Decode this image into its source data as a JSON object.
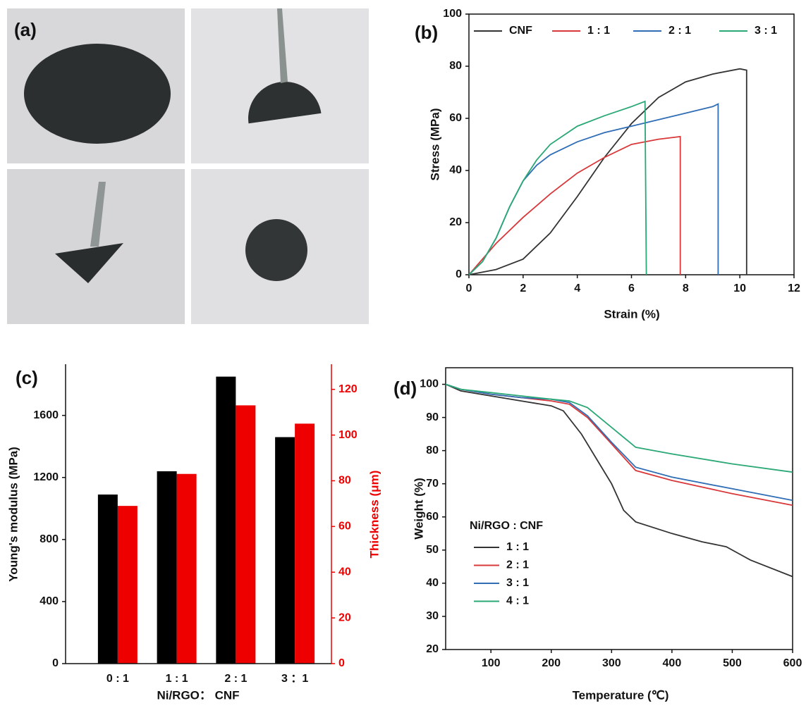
{
  "photos": {
    "label": "(a)"
  },
  "chart_data": [
    {
      "type": "line",
      "panel_label": "(b)",
      "x_label": "Strain (%)",
      "y_label": "Stress (MPa)",
      "xlim": [
        0,
        12
      ],
      "xticks": [
        0,
        2,
        4,
        6,
        8,
        10,
        12
      ],
      "ylim": [
        0,
        100
      ],
      "yticks": [
        0,
        20,
        40,
        60,
        80,
        100
      ],
      "legend": "top",
      "series": [
        {
          "name": "CNF",
          "color": "#333333",
          "x": [
            0,
            1,
            2,
            3,
            4,
            5,
            6,
            7,
            8,
            9,
            10,
            10.25,
            10.25
          ],
          "values": [
            0,
            2,
            6,
            16,
            30,
            45,
            58,
            68,
            74,
            77,
            79,
            78.5,
            0
          ]
        },
        {
          "name": "1 : 1",
          "color": "#d9383a",
          "x": [
            0,
            1,
            2,
            3,
            4,
            5,
            6,
            7,
            7.8,
            7.8
          ],
          "values": [
            0,
            12,
            22,
            31,
            39,
            45,
            50,
            52,
            53,
            0
          ]
        },
        {
          "name": "2 : 1",
          "color": "#2f6db5",
          "x": [
            0,
            0.5,
            1,
            1.5,
            2,
            2.5,
            3,
            4,
            5,
            6,
            7,
            8,
            9,
            9.2,
            9.2
          ],
          "values": [
            0,
            5,
            14,
            26,
            36,
            42,
            46,
            51,
            54.5,
            57,
            59.5,
            62,
            64.5,
            65.5,
            0
          ]
        },
        {
          "name": "3 : 1",
          "color": "#2aa876",
          "x": [
            0,
            0.5,
            1,
            1.5,
            2,
            2.5,
            3,
            4,
            5,
            6,
            6.5,
            6.55
          ],
          "values": [
            0,
            5,
            14,
            26,
            36,
            44,
            50,
            57,
            61,
            64.5,
            66.5,
            0
          ]
        }
      ]
    },
    {
      "type": "bar",
      "panel_label": "(c)",
      "x_label": "Ni/RGO： CNF",
      "y_label": "Young's modulus (MPa)",
      "y2_label": "Thickness (μm)",
      "categories": [
        "0 : 1",
        "1 : 1",
        "2 : 1",
        "3 ：1"
      ],
      "ylim": [
        0,
        1930
      ],
      "yticks": [
        0,
        400,
        800,
        1200,
        1600
      ],
      "y2lim": [
        0,
        131
      ],
      "y2ticks": [
        0,
        20,
        40,
        60,
        80,
        100,
        120
      ],
      "y2color": "#ee0000",
      "series": [
        {
          "color": "#000000",
          "values": [
            1090,
            1240,
            1850,
            1460
          ]
        },
        {
          "color": "#ee0000",
          "axis": "y2",
          "values": [
            69,
            83,
            113,
            105
          ]
        }
      ]
    },
    {
      "type": "line",
      "panel_label": "(d)",
      "x_label": "Temperature (℃)",
      "y_label": "Weight (%)",
      "xlim": [
        25,
        600
      ],
      "xticks": [
        100,
        200,
        300,
        400,
        500,
        600
      ],
      "ylim": [
        20,
        105
      ],
      "yticks": [
        20,
        30,
        40,
        50,
        60,
        70,
        80,
        90,
        100
      ],
      "legend": "lower left",
      "legend_title": "Ni/RGO : CNF",
      "series": [
        {
          "name": "1 : 1",
          "color": "#333333",
          "x": [
            25,
            50,
            100,
            150,
            200,
            220,
            250,
            280,
            300,
            320,
            340,
            400,
            450,
            490,
            510,
            530,
            600
          ],
          "values": [
            100,
            98,
            96.5,
            95,
            93.5,
            92,
            85,
            76,
            70,
            62,
            58.5,
            55,
            52.5,
            51,
            49,
            47,
            42
          ]
        },
        {
          "name": "2 : 1",
          "color": "#d9383a",
          "x": [
            25,
            50,
            100,
            150,
            200,
            230,
            260,
            300,
            340,
            400,
            500,
            600
          ],
          "values": [
            100,
            98.5,
            97,
            96,
            95,
            94,
            90,
            82,
            74,
            71,
            67,
            63.5
          ]
        },
        {
          "name": "3 : 1",
          "color": "#2f6db5",
          "x": [
            25,
            50,
            100,
            150,
            200,
            230,
            260,
            300,
            340,
            400,
            500,
            600
          ],
          "values": [
            100,
            98.5,
            97,
            96,
            95.5,
            94.5,
            90.5,
            82.5,
            75,
            72,
            68.5,
            65
          ]
        },
        {
          "name": "4 : 1",
          "color": "#2aa876",
          "x": [
            25,
            50,
            100,
            150,
            200,
            230,
            260,
            300,
            340,
            400,
            500,
            600
          ],
          "values": [
            100,
            98.5,
            97.5,
            96.5,
            95.5,
            95,
            93,
            87,
            81,
            79,
            76,
            73.5
          ]
        }
      ]
    }
  ]
}
